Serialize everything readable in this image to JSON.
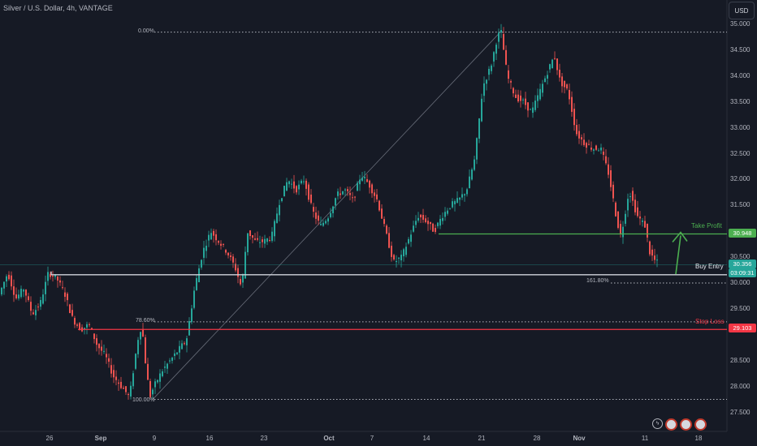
{
  "header": {
    "title": "Silver / U.S. Dollar, 4h, VANTAGE"
  },
  "currency_button": "USD",
  "chart_data": {
    "type": "candlestick",
    "symbol": "Silver / U.S. Dollar",
    "interval": "4h",
    "exchange": "VANTAGE",
    "y_ticks": [
      "35.000",
      "34.500",
      "34.000",
      "33.500",
      "33.000",
      "32.500",
      "32.000",
      "31.500",
      "30.500",
      "30.000",
      "29.500",
      "28.500",
      "28.000",
      "27.500"
    ],
    "y_tick_values": [
      35.0,
      34.5,
      34.0,
      33.5,
      33.0,
      32.5,
      32.0,
      31.5,
      30.5,
      30.0,
      29.5,
      28.5,
      28.0,
      27.5
    ],
    "ylim": [
      27.5,
      35.0
    ],
    "x_ticks": [
      "26",
      "Sep",
      "9",
      "16",
      "23",
      "Oct",
      "7",
      "14",
      "21",
      "28",
      "Nov",
      "11",
      "18"
    ],
    "price_path": [
      [
        0,
        29.8
      ],
      [
        10,
        30.2
      ],
      [
        20,
        29.7
      ],
      [
        30,
        29.9
      ],
      [
        40,
        29.4
      ],
      [
        50,
        29.6
      ],
      [
        60,
        30.2
      ],
      [
        70,
        30.1
      ],
      [
        80,
        29.8
      ],
      [
        90,
        29.3
      ],
      [
        100,
        29.1
      ],
      [
        110,
        29.2
      ],
      [
        120,
        28.8
      ],
      [
        130,
        28.6
      ],
      [
        140,
        28.2
      ],
      [
        150,
        28.0
      ],
      [
        160,
        27.8
      ],
      [
        170,
        28.9
      ],
      [
        175,
        29.2
      ],
      [
        180,
        28.4
      ],
      [
        185,
        27.8
      ],
      [
        190,
        28.0
      ],
      [
        200,
        28.3
      ],
      [
        215,
        28.6
      ],
      [
        230,
        28.9
      ],
      [
        240,
        29.9
      ],
      [
        250,
        30.6
      ],
      [
        260,
        31.0
      ],
      [
        270,
        30.8
      ],
      [
        280,
        30.6
      ],
      [
        290,
        30.3
      ],
      [
        298,
        29.9
      ],
      [
        305,
        31.0
      ],
      [
        315,
        30.8
      ],
      [
        325,
        30.8
      ],
      [
        335,
        30.9
      ],
      [
        345,
        31.6
      ],
      [
        355,
        32.0
      ],
      [
        365,
        31.8
      ],
      [
        375,
        32.0
      ],
      [
        385,
        31.4
      ],
      [
        395,
        31.1
      ],
      [
        405,
        31.3
      ],
      [
        415,
        31.7
      ],
      [
        425,
        31.8
      ],
      [
        435,
        31.6
      ],
      [
        445,
        32.1
      ],
      [
        455,
        31.9
      ],
      [
        465,
        31.6
      ],
      [
        475,
        31.0
      ],
      [
        485,
        30.4
      ],
      [
        495,
        30.5
      ],
      [
        505,
        30.9
      ],
      [
        515,
        31.3
      ],
      [
        525,
        31.2
      ],
      [
        535,
        31.0
      ],
      [
        545,
        31.3
      ],
      [
        555,
        31.5
      ],
      [
        565,
        31.6
      ],
      [
        575,
        31.8
      ],
      [
        585,
        32.4
      ],
      [
        595,
        33.8
      ],
      [
        605,
        34.2
      ],
      [
        612,
        34.7
      ],
      [
        617,
        34.9
      ],
      [
        625,
        34.0
      ],
      [
        635,
        33.6
      ],
      [
        645,
        33.5
      ],
      [
        655,
        33.3
      ],
      [
        665,
        33.7
      ],
      [
        675,
        34.1
      ],
      [
        683,
        34.4
      ],
      [
        690,
        33.9
      ],
      [
        700,
        33.7
      ],
      [
        710,
        32.9
      ],
      [
        720,
        32.7
      ],
      [
        730,
        32.6
      ],
      [
        740,
        32.6
      ],
      [
        750,
        32.1
      ],
      [
        760,
        31.2
      ],
      [
        765,
        30.9
      ],
      [
        775,
        31.8
      ],
      [
        785,
        31.3
      ],
      [
        795,
        31.1
      ],
      [
        800,
        30.6
      ],
      [
        808,
        30.4
      ]
    ],
    "fib_levels": [
      {
        "label": "0.00%",
        "value": 34.85
      },
      {
        "label": "78.60%",
        "value": 29.25
      },
      {
        "label": "100.00%",
        "value": 27.75
      },
      {
        "label": "161.80%",
        "value": 30.0
      }
    ],
    "levels": [
      {
        "name": "Take Profit",
        "value": 30.948,
        "color": "#4caf50"
      },
      {
        "name": "Buy Entry",
        "value": 30.16,
        "color": "#d1d4dc"
      },
      {
        "name": "Stop Loss",
        "value": 29.103,
        "color": "#f23645"
      }
    ],
    "last_price": "30.356",
    "countdown": "03:09:31",
    "tp_tag": "30.948",
    "sl_tag": "29.103"
  },
  "annotations": {
    "take_profit": "Take Profit",
    "buy_entry": "Buy Entry",
    "stop_loss": "Stop Loss"
  },
  "colors": {
    "up": "#26a69a",
    "down": "#ef5350",
    "background": "#161a25",
    "take_profit": "#4caf50",
    "stop_loss": "#f23645"
  }
}
